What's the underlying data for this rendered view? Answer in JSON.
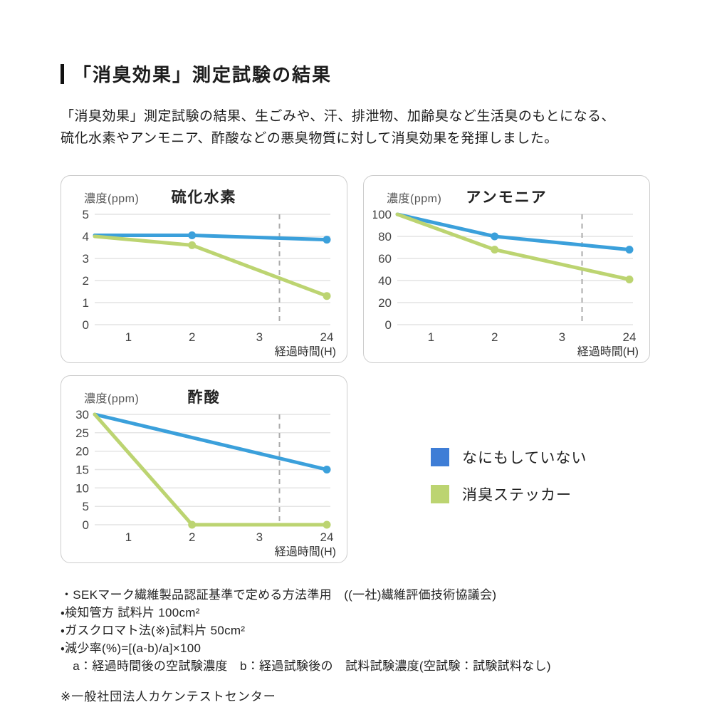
{
  "page": {
    "title": "「消臭効果」測定試験の結果",
    "description_lines": [
      "「消臭効果」測定試験の結果、生ごみや、汗、排泄物、加齢臭など生活臭のもとになる、",
      "硫化水素やアンモニア、酢酸などの悪臭物質に対して消臭効果を発揮しました。"
    ]
  },
  "colors": {
    "line_blue": "#3BA0DB",
    "line_green": "#BCD471",
    "legend_blue": "#3E7DD6",
    "legend_green": "#BCD471",
    "gridline": "#E4E4E4",
    "dashed_break": "#ABABAB"
  },
  "legend": {
    "items": [
      {
        "label": "なにもしていない",
        "color": "#3E7DD6"
      },
      {
        "label": "消臭ステッカー",
        "color": "#BCD471"
      }
    ]
  },
  "chart_data": [
    {
      "type": "line",
      "title": "硫化水素",
      "ylabel": "濃度(ppm)",
      "xlabel": "経過時間(H)",
      "x_tick_labels": [
        "1",
        "2",
        "3",
        "24"
      ],
      "y_ticks": [
        5,
        4,
        3,
        2,
        1,
        0
      ],
      "ylim": [
        0,
        5
      ],
      "grid": true,
      "axis_break_between": [
        3,
        24
      ],
      "series": [
        {
          "name": "なにもしていない",
          "color": "#3BA0DB",
          "x": [
            0,
            2,
            24
          ],
          "values": [
            4.05,
            4.05,
            3.85
          ],
          "dot_x": [
            2,
            24
          ]
        },
        {
          "name": "消臭ステッカー",
          "color": "#BCD471",
          "x": [
            0,
            2,
            24
          ],
          "values": [
            4.0,
            3.6,
            1.3
          ],
          "dot_x": [
            2,
            24
          ]
        }
      ]
    },
    {
      "type": "line",
      "title": "アンモニア",
      "ylabel": "濃度(ppm)",
      "xlabel": "経過時間(H)",
      "x_tick_labels": [
        "1",
        "2",
        "3",
        "24"
      ],
      "y_ticks": [
        100,
        80,
        60,
        40,
        20,
        0
      ],
      "ylim": [
        0,
        100
      ],
      "grid": true,
      "axis_break_between": [
        3,
        24
      ],
      "series": [
        {
          "name": "なにもしていない",
          "color": "#3BA0DB",
          "x": [
            0,
            2,
            24
          ],
          "values": [
            100,
            80,
            68
          ],
          "dot_x": [
            2,
            24
          ]
        },
        {
          "name": "消臭ステッカー",
          "color": "#BCD471",
          "x": [
            0,
            2,
            24
          ],
          "values": [
            100,
            68,
            41
          ],
          "dot_x": [
            2,
            24
          ]
        }
      ]
    },
    {
      "type": "line",
      "title": "酢酸",
      "ylabel": "濃度(ppm)",
      "xlabel": "経過時間(H)",
      "x_tick_labels": [
        "1",
        "2",
        "3",
        "24"
      ],
      "y_ticks": [
        30,
        25,
        20,
        15,
        10,
        5,
        0
      ],
      "ylim": [
        0,
        30
      ],
      "grid": true,
      "axis_break_between": [
        3,
        24
      ],
      "series": [
        {
          "name": "なにもしていない",
          "color": "#3BA0DB",
          "x": [
            0,
            24
          ],
          "values": [
            30,
            15
          ],
          "dot_x": [
            24
          ]
        },
        {
          "name": "消臭ステッカー",
          "color": "#BCD471",
          "x": [
            0,
            2,
            24
          ],
          "values": [
            30,
            0,
            0
          ],
          "dot_x": [
            2,
            24
          ]
        }
      ]
    }
  ],
  "footnotes": {
    "lines": [
      "・SEKマーク繊維製品認証基準で定める方法準用　((一社)繊維評価技術協議会)",
      "・検知管方 試料片 100cm²",
      "・ガスクロマト法(※)試料片 50cm²",
      "・減少率(%)=[(a-b)/a]×100",
      "　a：経過時間後の空試験濃度　b：経過試験後の　試料試験濃度(空試験：試験試料なし)"
    ],
    "reference": "※一般社団法人カケンテストセンター"
  }
}
